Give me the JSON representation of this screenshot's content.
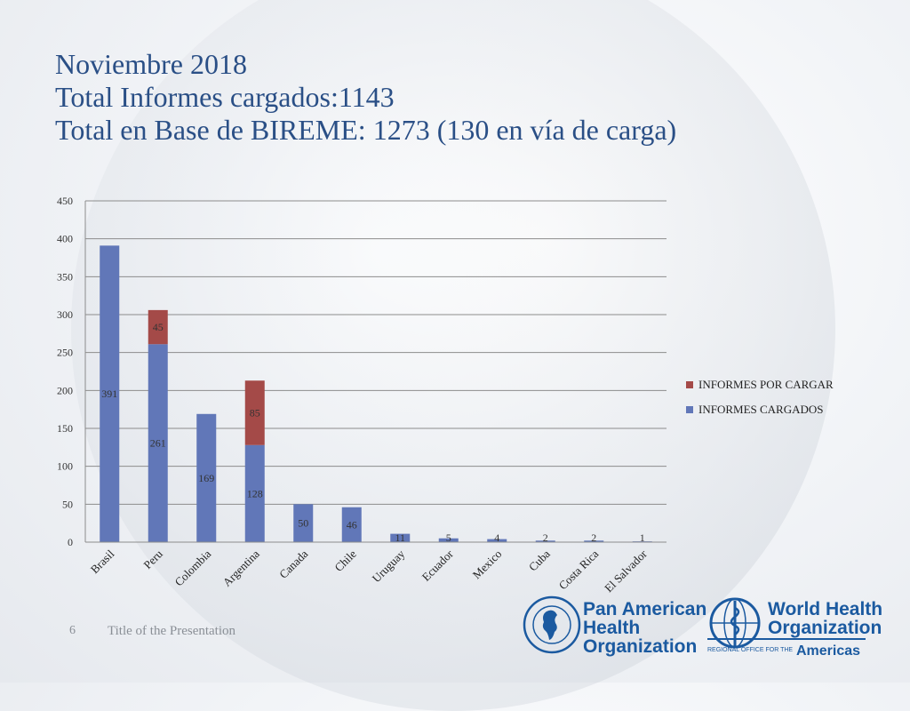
{
  "slide": {
    "title_lines": [
      "Noviembre 2018",
      "Total Informes cargados:1143",
      "Total en Base de BIREME: 1273 (130 en vía de carga)"
    ],
    "footer_number": "6",
    "footer_title": "Title of the Presentation"
  },
  "logos": {
    "paho": {
      "lines": [
        "Pan American",
        "Health",
        "Organization"
      ],
      "seal_text": "PRO SALUTE NOVI MUNDI"
    },
    "who": {
      "lines": [
        "World Health",
        "Organization"
      ],
      "sub_prefix": "REGIONAL OFFICE FOR THE",
      "sub_region": "Americas"
    }
  },
  "colors": {
    "title": "#2a4f86",
    "cargados": "#6177b8",
    "por_cargar": "#a44a48",
    "grid": "#8c8c8c",
    "logo": "#1b5aa0"
  },
  "chart_data": {
    "type": "bar",
    "stacked": true,
    "categories": [
      "Brasil",
      "Peru",
      "Colombia",
      "Argentina",
      "Canada",
      "Chile",
      "Uruguay",
      "Ecuador",
      "Mexico",
      "Cuba",
      "Costa Rica",
      "El Salvador"
    ],
    "series": [
      {
        "name": "INFORMES CARGADOS",
        "values": [
          391,
          261,
          169,
          128,
          50,
          46,
          11,
          5,
          4,
          2,
          2,
          1
        ],
        "color": "#6177b8"
      },
      {
        "name": "INFORMES POR CARGAR",
        "values": [
          0,
          45,
          0,
          85,
          0,
          0,
          0,
          0,
          0,
          0,
          0,
          0
        ],
        "color": "#a44a48"
      }
    ],
    "data_labels": {
      "INFORMES CARGADOS": [
        "391",
        "261",
        "169",
        "128",
        "50",
        "46",
        "11",
        "5",
        "4",
        "2",
        "2",
        "1"
      ],
      "INFORMES POR CARGAR": [
        "",
        "45",
        "",
        "85",
        "",
        "",
        "",
        "",
        "",
        "",
        "",
        ""
      ]
    },
    "yticks": [
      0,
      50,
      100,
      150,
      200,
      250,
      300,
      350,
      400,
      450
    ],
    "ylim": [
      0,
      450
    ],
    "grid": true,
    "legend_position": "right",
    "legend_order": [
      "INFORMES POR CARGAR",
      "INFORMES CARGADOS"
    ]
  }
}
